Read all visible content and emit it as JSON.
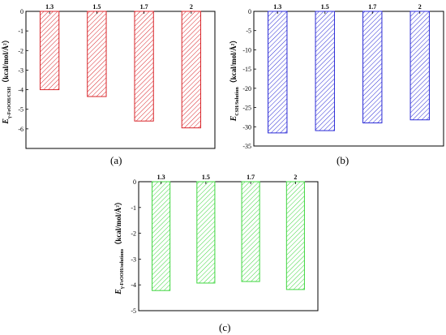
{
  "chart_data": [
    {
      "type": "bar",
      "panel_label": "(a)",
      "categories": [
        "1.3",
        "1.5",
        "1.7",
        "2"
      ],
      "values": [
        -4.0,
        -4.35,
        -5.6,
        -5.95
      ],
      "ylabel_main": "E",
      "ylabel_sub": "γ-FeOOH/CSH",
      "ylabel_unit": "（kcal/mol/Å²）",
      "ylim": [
        -7,
        0
      ],
      "yticks": [
        0,
        -1,
        -2,
        -3,
        -4,
        -5,
        -6,
        -7
      ],
      "ytick_labels": [
        "0",
        "-1",
        "-2",
        "-3",
        "-4",
        "-5",
        "-6",
        ""
      ],
      "color": "#d9262b",
      "grid": false
    },
    {
      "type": "bar",
      "panel_label": "(b)",
      "categories": [
        "1.3",
        "1.5",
        "1.7",
        "2"
      ],
      "values": [
        -31.6,
        -31.0,
        -29.0,
        -28.2
      ],
      "ylabel_main": "E",
      "ylabel_sub": "CSH/Solution",
      "ylabel_unit": "（kcal/mol/Å²）",
      "ylim": [
        -35,
        0
      ],
      "yticks": [
        0,
        -5,
        -10,
        -15,
        -20,
        -25,
        -30,
        -35
      ],
      "ytick_labels": [
        "0",
        "-5",
        "-10",
        "-15",
        "-20",
        "-25",
        "-30",
        "-35"
      ],
      "color": "#2b2bd6",
      "grid": false
    },
    {
      "type": "bar",
      "panel_label": "(c)",
      "categories": [
        "1.3",
        "1.5",
        "1.7",
        "2"
      ],
      "values": [
        -4.22,
        -3.93,
        -3.87,
        -4.18
      ],
      "ylabel_main": "E",
      "ylabel_sub": "γ-FeOOH/solutions",
      "ylabel_unit": "（kcal/mol/Å²）",
      "ylim": [
        -5,
        0
      ],
      "yticks": [
        0,
        -1,
        -2,
        -3,
        -4,
        -5
      ],
      "ytick_labels": [
        "0",
        "-1",
        "-2",
        "-3",
        "-4",
        "-5"
      ],
      "color": "#3fd63f",
      "grid": false
    }
  ]
}
